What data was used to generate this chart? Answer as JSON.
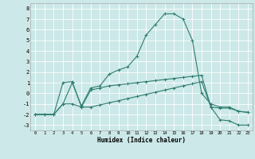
{
  "title": "",
  "xlabel": "Humidex (Indice chaleur)",
  "background_color": "#cce8e8",
  "grid_color": "#ffffff",
  "line_color": "#2d7d6e",
  "xlim": [
    -0.5,
    23.5
  ],
  "ylim": [
    -3.5,
    8.5
  ],
  "yticks": [
    -3,
    -2,
    -1,
    0,
    1,
    2,
    3,
    4,
    5,
    6,
    7,
    8
  ],
  "xticks": [
    0,
    1,
    2,
    3,
    4,
    5,
    6,
    7,
    8,
    9,
    10,
    11,
    12,
    13,
    14,
    15,
    16,
    17,
    18,
    19,
    20,
    21,
    22,
    23
  ],
  "series": [
    {
      "x": [
        0,
        1,
        2,
        3,
        4,
        5,
        6,
        7,
        8,
        9,
        10,
        11,
        12,
        13,
        14,
        15,
        16,
        17,
        18,
        19,
        20,
        21,
        22,
        23
      ],
      "y": [
        -2,
        -2,
        -2,
        -1,
        1.0,
        -1.2,
        0.5,
        0.7,
        1.8,
        2.2,
        2.5,
        3.5,
        5.5,
        6.5,
        7.5,
        7.5,
        7.0,
        5.0,
        0.0,
        -1.0,
        -1.3,
        -1.3,
        -1.7,
        -1.8
      ]
    },
    {
      "x": [
        0,
        1,
        2,
        3,
        4,
        5,
        6,
        7,
        8,
        9,
        10,
        11,
        12,
        13,
        14,
        15,
        16,
        17,
        18,
        19,
        20,
        21,
        22,
        23
      ],
      "y": [
        -2,
        -2,
        -2,
        1.0,
        1.1,
        -1.3,
        0.3,
        0.5,
        0.7,
        0.8,
        0.9,
        1.0,
        1.1,
        1.2,
        1.3,
        1.4,
        1.5,
        1.6,
        1.7,
        -1.3,
        -1.4,
        -1.4,
        -1.7,
        -1.8
      ]
    },
    {
      "x": [
        0,
        1,
        2,
        3,
        4,
        5,
        6,
        7,
        8,
        9,
        10,
        11,
        12,
        13,
        14,
        15,
        16,
        17,
        18,
        19,
        20,
        21,
        22,
        23
      ],
      "y": [
        -2,
        -2,
        -2,
        -1,
        -1,
        -1.3,
        -1.3,
        -1.1,
        -0.9,
        -0.7,
        -0.5,
        -0.3,
        -0.1,
        0.1,
        0.3,
        0.5,
        0.7,
        0.9,
        1.1,
        -1.3,
        -2.5,
        -2.6,
        -3.0,
        -3.0
      ]
    }
  ]
}
